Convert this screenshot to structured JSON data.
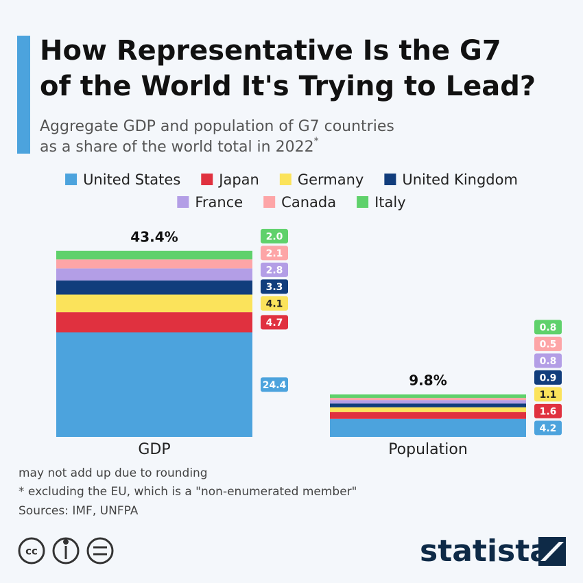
{
  "chart_data": {
    "type": "stacked_bar",
    "title": [
      "How Representative Is the G7",
      "of the World It's Trying to Lead?"
    ],
    "subtitle": [
      "Aggregate GDP and population of G7 countries",
      "as a share of the world total in 2022"
    ],
    "subtitle_mark": "*",
    "categories": [
      "GDP",
      "Population"
    ],
    "series": [
      {
        "name": "United States",
        "color": "#4ca3dd",
        "values": [
          24.4,
          4.2
        ],
        "value_labels": [
          "24.4",
          "4.2"
        ]
      },
      {
        "name": "Japan",
        "color": "#e0313f",
        "values": [
          4.7,
          1.6
        ],
        "value_labels": [
          "4.7",
          "1.6"
        ]
      },
      {
        "name": "Germany",
        "color": "#fbe35b",
        "values": [
          4.1,
          1.1
        ],
        "value_labels": [
          "4.1",
          "1.1"
        ]
      },
      {
        "name": "United Kingdom",
        "color": "#113d7c",
        "values": [
          3.3,
          0.9
        ],
        "value_labels": [
          "3.3",
          "0.9"
        ]
      },
      {
        "name": "France",
        "color": "#b39ee6",
        "values": [
          2.8,
          0.8
        ],
        "value_labels": [
          "2.8",
          "0.8"
        ]
      },
      {
        "name": "Canada",
        "color": "#fda5a7",
        "values": [
          2.1,
          0.5
        ],
        "value_labels": [
          "2.1",
          "0.5"
        ]
      },
      {
        "name": "Italy",
        "color": "#5fd16b",
        "values": [
          2.0,
          0.8
        ],
        "value_labels": [
          "2.0",
          "0.8"
        ]
      }
    ],
    "totals": [
      43.4,
      9.8
    ],
    "total_labels": [
      "43.4%",
      "9.8%"
    ],
    "notes": [
      "may not add up due to rounding",
      "* excluding the EU, which is a \"non-enumerated member\"",
      "Sources: IMF, UNFPA"
    ],
    "brand": "statista"
  }
}
